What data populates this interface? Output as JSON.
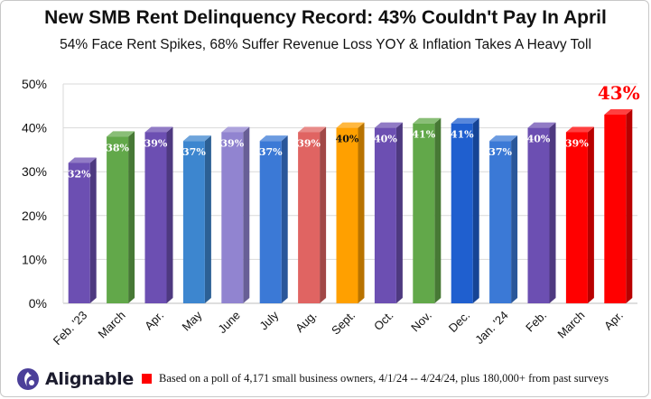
{
  "header": {
    "title": "New SMB Rent Delinquency Record: 43% Couldn't Pay In April",
    "subtitle": "54% Face Rent Spikes, 68% Suffer Revenue Loss YOY & Inflation Takes A Heavy Toll"
  },
  "brand": {
    "logo_text": "Alignable",
    "logo_color": "#4b3f99"
  },
  "legend": {
    "text": "Based on a poll of 4,171 small business owners, 4/1/24 -- 4/24/24, plus 180,000+ from past surveys",
    "color": "#ff0000"
  },
  "chart_data": {
    "type": "bar",
    "title": "New SMB Rent Delinquency Record: 43% Couldn't Pay In April",
    "subtitle": "54% Face Rent Spikes, 68% Suffer Revenue Loss YOY & Inflation Takes A Heavy Toll",
    "xlabel": "",
    "ylabel": "",
    "ylim": [
      0,
      50
    ],
    "yticks": [
      "0%",
      "10%",
      "20%",
      "30%",
      "40%",
      "50%"
    ],
    "grid": true,
    "categories": [
      "Feb. '23",
      "March",
      "Apr.",
      "May",
      "June",
      "July",
      "Aug.",
      "Sept.",
      "Oct.",
      "Nov.",
      "Dec.",
      "Jan. '24",
      "Feb.",
      "March",
      "Apr."
    ],
    "values": [
      32,
      38,
      39,
      37,
      39,
      37,
      39,
      40,
      40,
      41,
      41,
      37,
      40,
      39,
      43
    ],
    "labels": [
      "32%",
      "38%",
      "39%",
      "37%",
      "39%",
      "37%",
      "39%",
      "40%",
      "40%",
      "41%",
      "41%",
      "37%",
      "40%",
      "39%",
      "43%"
    ],
    "colors": [
      "#6c4fb2",
      "#62a84a",
      "#6c4fb2",
      "#3d86cf",
      "#9184d0",
      "#3b79d6",
      "#e06462",
      "#ffa000",
      "#6c4fb2",
      "#62a84a",
      "#1f5fcf",
      "#3b79d6",
      "#6c4fb2",
      "#ff0000",
      "#ff0000"
    ],
    "highlight_label_color": "#ff0000"
  }
}
